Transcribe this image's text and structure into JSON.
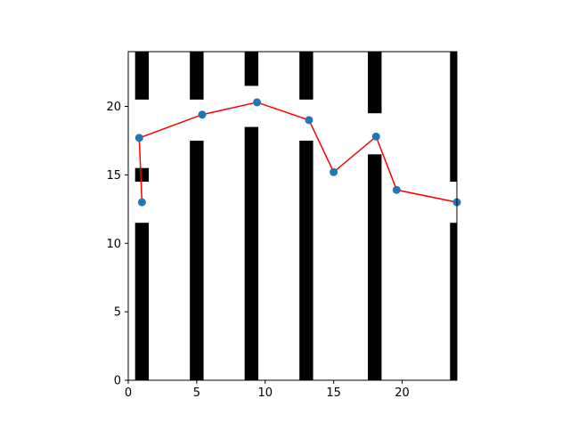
{
  "chart_data": {
    "type": "line",
    "title": "",
    "xlabel": "",
    "ylabel": "",
    "xlim": [
      0,
      24
    ],
    "ylim": [
      0,
      24
    ],
    "grid": false,
    "legend": "none",
    "xticks": [
      0,
      5,
      10,
      15,
      20
    ],
    "yticks": [
      0,
      5,
      10,
      15,
      20
    ],
    "obstacles": [
      {
        "x": [
          0.5,
          1.5
        ],
        "y": [
          0,
          11.5
        ]
      },
      {
        "x": [
          0.5,
          1.5
        ],
        "y": [
          14.5,
          15.5
        ]
      },
      {
        "x": [
          0.5,
          1.5
        ],
        "y": [
          20.5,
          24
        ]
      },
      {
        "x": [
          4.5,
          5.5
        ],
        "y": [
          0,
          17.5
        ]
      },
      {
        "x": [
          4.5,
          5.5
        ],
        "y": [
          20.5,
          24
        ]
      },
      {
        "x": [
          8.5,
          9.5
        ],
        "y": [
          0,
          18.5
        ]
      },
      {
        "x": [
          8.5,
          9.5
        ],
        "y": [
          21.5,
          24
        ]
      },
      {
        "x": [
          12.5,
          13.5
        ],
        "y": [
          0,
          17.5
        ]
      },
      {
        "x": [
          12.5,
          13.5
        ],
        "y": [
          20.5,
          24
        ]
      },
      {
        "x": [
          17.5,
          18.5
        ],
        "y": [
          0,
          16.5
        ]
      },
      {
        "x": [
          17.5,
          18.5
        ],
        "y": [
          19.5,
          24
        ]
      },
      {
        "x": [
          23.5,
          24
        ],
        "y": [
          0,
          11.5
        ]
      },
      {
        "x": [
          23.5,
          24
        ],
        "y": [
          14.5,
          24
        ]
      }
    ],
    "points": {
      "x": [
        0.8,
        1.0,
        5.4,
        9.4,
        13.2,
        15.0,
        18.1,
        19.6,
        24.0
      ],
      "y": [
        17.7,
        13.0,
        19.4,
        20.3,
        19.0,
        15.2,
        17.8,
        13.9,
        13.0
      ]
    },
    "path": {
      "x": [
        1.0,
        0.8,
        5.4,
        9.4,
        13.2,
        15.0,
        18.1,
        19.6,
        24.0
      ],
      "y": [
        13.0,
        17.7,
        19.4,
        20.3,
        19.0,
        15.2,
        17.8,
        13.9,
        13.0
      ]
    },
    "colors": {
      "obstacle": "#000000",
      "line": "#ff0000",
      "marker": "#1f77b4",
      "axes": "#000000",
      "background": "#ffffff"
    }
  }
}
